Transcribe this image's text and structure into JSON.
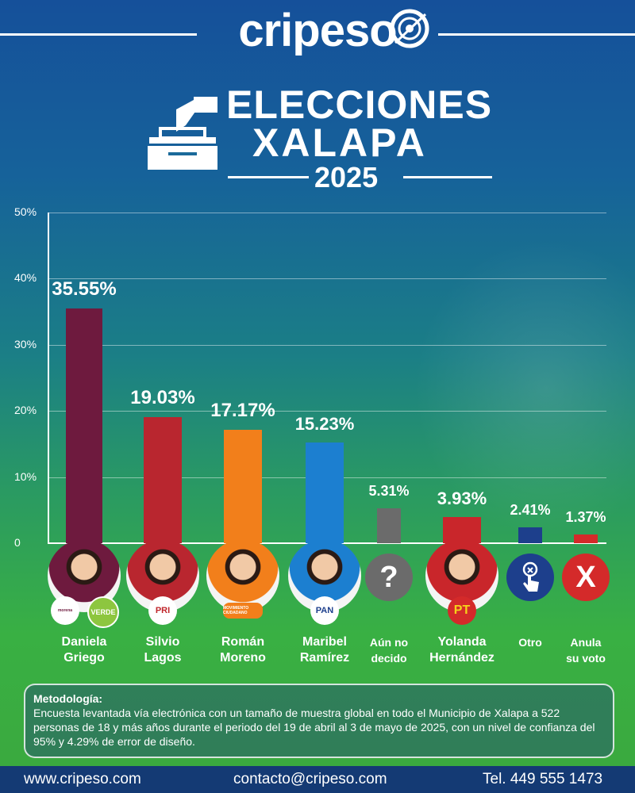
{
  "header": {
    "brand": "cripeso",
    "title_line1": "ELECCIONES",
    "title_line2": "XALAPA",
    "title_year": "2025"
  },
  "chart_data": {
    "type": "bar",
    "ylim": [
      0,
      50
    ],
    "yticks": [
      "0",
      "10%",
      "20%",
      "30%",
      "40%",
      "50%"
    ],
    "grid": true,
    "categories": [
      "Daniela Griego",
      "Silvio Lagos",
      "Román Moreno",
      "Maribel Ramírez",
      "Aún no decido",
      "Yolanda Hernández",
      "Otro",
      "Anula su voto"
    ],
    "values": [
      35.55,
      19.03,
      17.17,
      15.23,
      5.31,
      3.93,
      2.41,
      1.37
    ],
    "value_labels": [
      "35.55%",
      "19.03%",
      "17.17%",
      "15.23%",
      "5.31%",
      "3.93%",
      "2.41%",
      "1.37%"
    ],
    "colors": [
      "#6e1a3e",
      "#b9262f",
      "#f27f1b",
      "#1c7fd0",
      "#6b6b6b",
      "#c9262b",
      "#1d3f8c",
      "#d42a2a"
    ]
  },
  "candidates": [
    {
      "line1": "Daniela",
      "line2": "Griego",
      "party": "morena",
      "party2": "VERDE"
    },
    {
      "line1": "Silvio",
      "line2": "Lagos",
      "party": "PRI"
    },
    {
      "line1": "Román",
      "line2": "Moreno",
      "party": "MOVIMIENTO CIUDADANO"
    },
    {
      "line1": "Maribel",
      "line2": "Ramírez",
      "party": "PAN"
    },
    {
      "line1": "Aún no",
      "line2": "decido",
      "icon": "?"
    },
    {
      "line1": "Yolanda",
      "line2": "Hernández",
      "party": "PT"
    },
    {
      "line1": "Otro",
      "line2": ""
    },
    {
      "line1": "Anula",
      "line2": "su voto",
      "icon": "X"
    }
  ],
  "methodology": {
    "title": "Metodología:",
    "text": "Encuesta levantada vía electrónica con un tamaño de muestra global en todo el Municipio de Xalapa a 522 personas de 18 y más años durante el periodo del 19 de abril al 3 de mayo de 2025, con un nivel de confianza del 95% y 4.29% de error de diseño."
  },
  "footer": {
    "website": "www.cripeso.com",
    "email": "contacto@cripeso.com",
    "phone": "Tel. 449 555 1473"
  }
}
